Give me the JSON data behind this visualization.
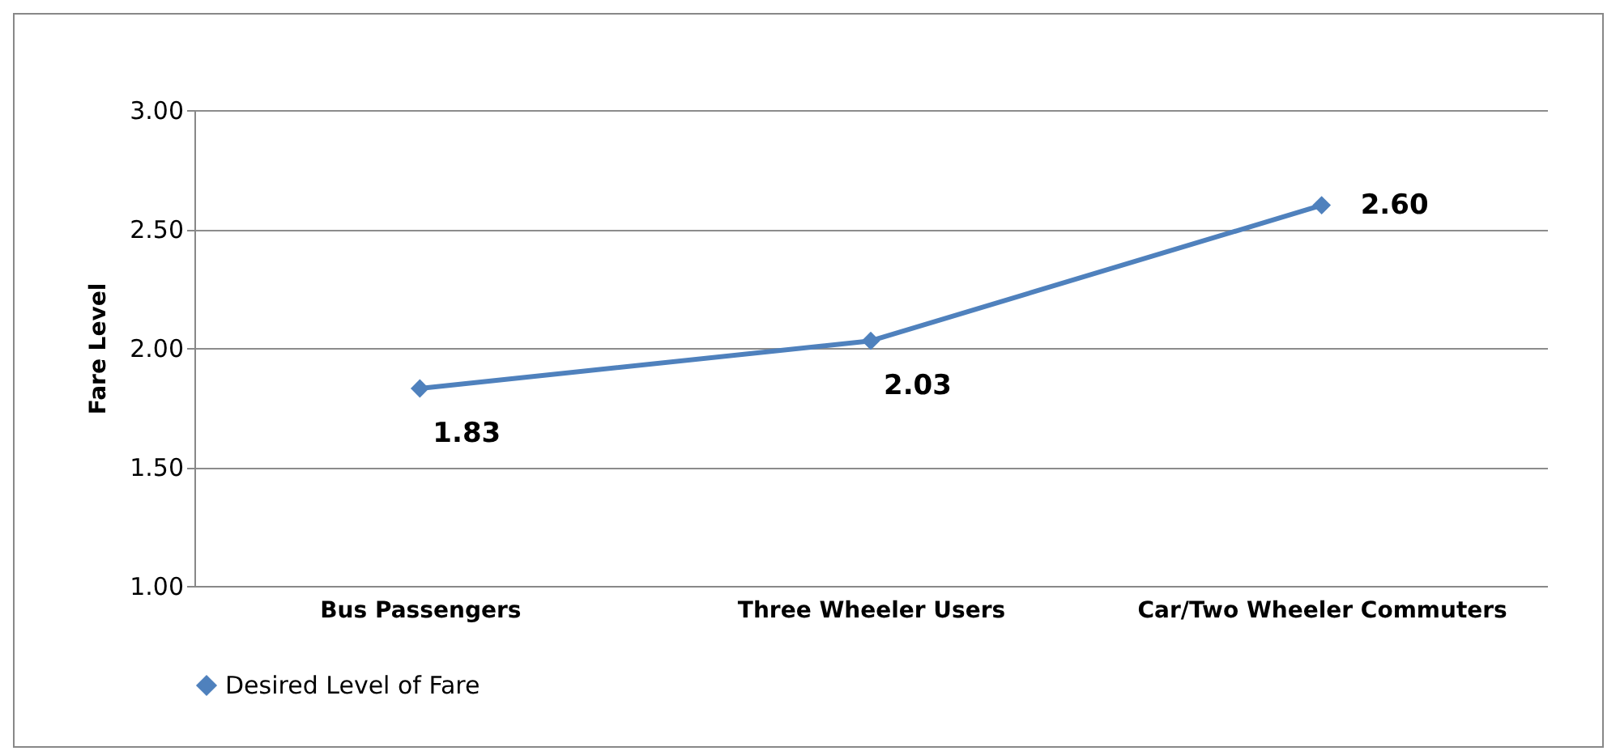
{
  "chart_data": {
    "type": "line",
    "ylabel": "Fare Level",
    "categories": [
      "Bus Passengers",
      "Three Wheeler Users",
      "Car/Two Wheeler Commuters"
    ],
    "series": [
      {
        "name": "Desired Level of Fare",
        "color": "#4f81bd",
        "values": [
          1.83,
          2.03,
          2.6
        ],
        "value_labels": [
          "1.83",
          "2.03",
          "2.60"
        ]
      }
    ],
    "ylim": [
      1,
      3
    ],
    "yticks": [
      {
        "value": 1,
        "label": "1.00"
      },
      {
        "value": 1.5,
        "label": "1.50"
      },
      {
        "value": 2,
        "label": "2.00"
      },
      {
        "value": 2.5,
        "label": "2.50"
      },
      {
        "value": 3,
        "label": "3.00"
      }
    ],
    "grid": "y",
    "legend": "bottom",
    "marker": "diamond",
    "line_style": "solid"
  }
}
